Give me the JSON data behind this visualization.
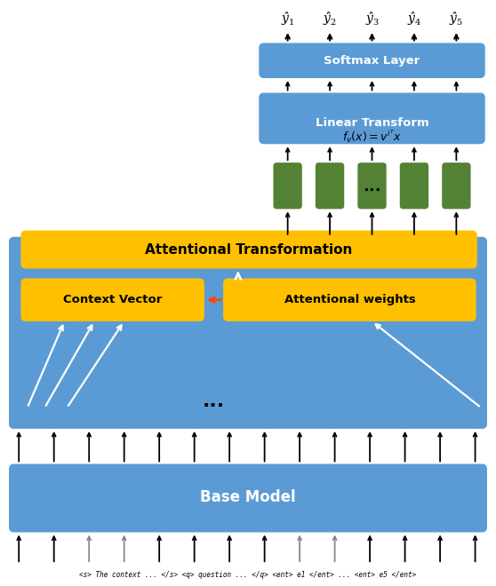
{
  "fig_width": 5.58,
  "fig_height": 6.6,
  "dpi": 100,
  "colors": {
    "blue_light": "#5B9BD5",
    "orange": "#FFC000",
    "green": "#548235",
    "white": "#FFFFFF",
    "black": "#000000",
    "red_arrow": "#FF4500",
    "gray_arrow": "#888888"
  },
  "bottom_text": "<s> The context ... </s> <q> question ... </q> <ent> e1 </ent> ... <ent> e5 </ent>",
  "base_model_label": "Base Model",
  "softmax_label": "Softmax Layer",
  "linear_label": "Linear Transform",
  "linear_formula": "$f_v(x) = v^{i^{T}} x$",
  "att_transform_label": "Attentional Transformation",
  "context_vec_label": "Context Vector",
  "att_weights_label": "Attentional weights",
  "output_labels": [
    "$\\hat{y}_1$",
    "$\\hat{y}_2$",
    "$\\hat{y}_3$",
    "$\\hat{y}_4$",
    "$\\hat{y}_5$"
  ]
}
